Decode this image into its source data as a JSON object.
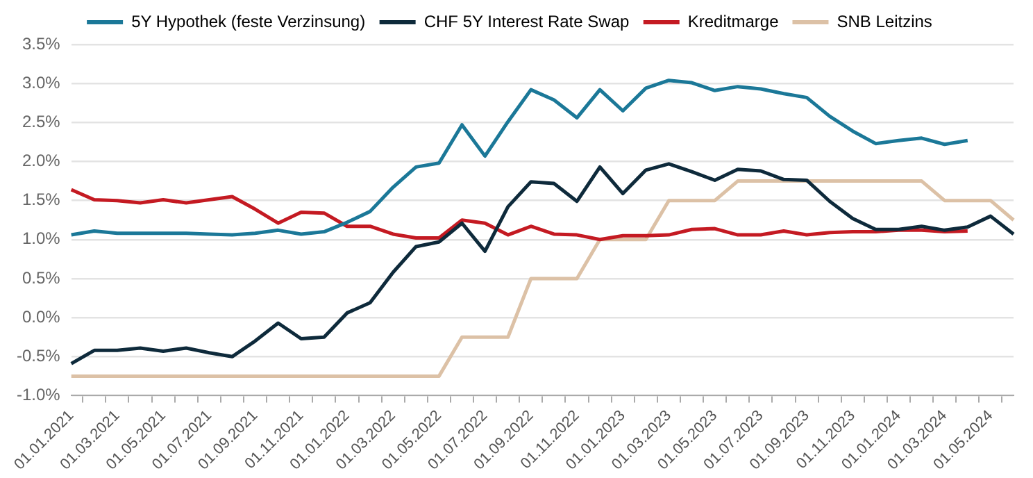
{
  "chart_data": {
    "type": "line",
    "categories": [
      "01.01.2021",
      null,
      "01.03.2021",
      null,
      "01.05.2021",
      null,
      "01.07.2021",
      null,
      "01.09.2021",
      null,
      "01.11.2021",
      null,
      "01.01.2022",
      null,
      "01.03.2022",
      null,
      "01.05.2022",
      null,
      "01.07.2022",
      null,
      "01.09.2022",
      null,
      "01.11.2022",
      null,
      "01.01.2023",
      null,
      "01.03.2023",
      null,
      "01.05.2023",
      null,
      "01.07.2023",
      null,
      "01.09.2023",
      null,
      "01.11.2023",
      null,
      "01.01.2024",
      null,
      "01.03.2024",
      null,
      "01.05.2024",
      null
    ],
    "series": [
      {
        "name": "5Y Hypothek (feste Verzinsung)",
        "color": "#1b7898",
        "values": [
          1.06,
          1.11,
          1.08,
          1.08,
          1.08,
          1.08,
          1.07,
          1.06,
          1.08,
          1.12,
          1.07,
          1.1,
          1.22,
          1.36,
          1.67,
          1.93,
          1.98,
          2.47,
          2.07,
          2.51,
          2.92,
          2.79,
          2.56,
          2.92,
          2.65,
          2.94,
          3.04,
          3.01,
          2.91,
          2.96,
          2.93,
          2.87,
          2.82,
          2.58,
          2.39,
          2.23,
          2.27,
          2.3,
          2.22,
          2.27,
          null,
          null
        ]
      },
      {
        "name": "CHF 5Y Interest Rate Swap",
        "color": "#0e2a3b",
        "values": [
          -0.59,
          -0.42,
          -0.42,
          -0.39,
          -0.43,
          -0.39,
          -0.45,
          -0.5,
          -0.3,
          -0.07,
          -0.27,
          -0.25,
          0.06,
          0.19,
          0.58,
          0.91,
          0.97,
          1.21,
          0.85,
          1.42,
          1.74,
          1.72,
          1.49,
          1.93,
          1.59,
          1.89,
          1.97,
          1.87,
          1.76,
          1.9,
          1.88,
          1.77,
          1.76,
          1.49,
          1.27,
          1.13,
          1.13,
          1.17,
          1.12,
          1.16,
          1.3,
          1.07
        ]
      },
      {
        "name": "Kreditmarge",
        "color": "#c41a22",
        "values": [
          1.64,
          1.51,
          1.5,
          1.47,
          1.51,
          1.47,
          1.51,
          1.55,
          1.39,
          1.21,
          1.35,
          1.34,
          1.17,
          1.17,
          1.07,
          1.02,
          1.02,
          1.25,
          1.21,
          1.06,
          1.17,
          1.07,
          1.06,
          1.0,
          1.05,
          1.05,
          1.06,
          1.13,
          1.14,
          1.06,
          1.06,
          1.11,
          1.06,
          1.09,
          1.1,
          1.1,
          1.12,
          1.12,
          1.1,
          1.11,
          null,
          null
        ]
      },
      {
        "name": "SNB Leitzins",
        "color": "#dcc1a6",
        "values": [
          -0.75,
          -0.75,
          -0.75,
          -0.75,
          -0.75,
          -0.75,
          -0.75,
          -0.75,
          -0.75,
          -0.75,
          -0.75,
          -0.75,
          -0.75,
          -0.75,
          -0.75,
          -0.75,
          -0.75,
          -0.25,
          -0.25,
          -0.25,
          0.5,
          0.5,
          0.5,
          1.0,
          1.0,
          1.0,
          1.5,
          1.5,
          1.5,
          1.75,
          1.75,
          1.75,
          1.75,
          1.75,
          1.75,
          1.75,
          1.75,
          1.75,
          1.5,
          1.5,
          1.5,
          1.25
        ]
      }
    ],
    "ylim": [
      -1.0,
      3.5
    ],
    "yticks": [
      {
        "value": -1.0,
        "label": "-1.0%"
      },
      {
        "value": -0.5,
        "label": "-0.5%"
      },
      {
        "value": 0,
        "label": "0.0%"
      },
      {
        "value": 0.5,
        "label": "0.5%"
      },
      {
        "value": 1.0,
        "label": "1.0%"
      },
      {
        "value": 1.5,
        "label": "1.5%"
      },
      {
        "value": 2.0,
        "label": "2.0%"
      },
      {
        "value": 2.5,
        "label": "2.5%"
      },
      {
        "value": 3.0,
        "label": "3.0%"
      },
      {
        "value": 3.5,
        "label": "3.5%"
      }
    ],
    "grid": "y",
    "legend": "top",
    "marker": "none",
    "line_style": "solid"
  }
}
